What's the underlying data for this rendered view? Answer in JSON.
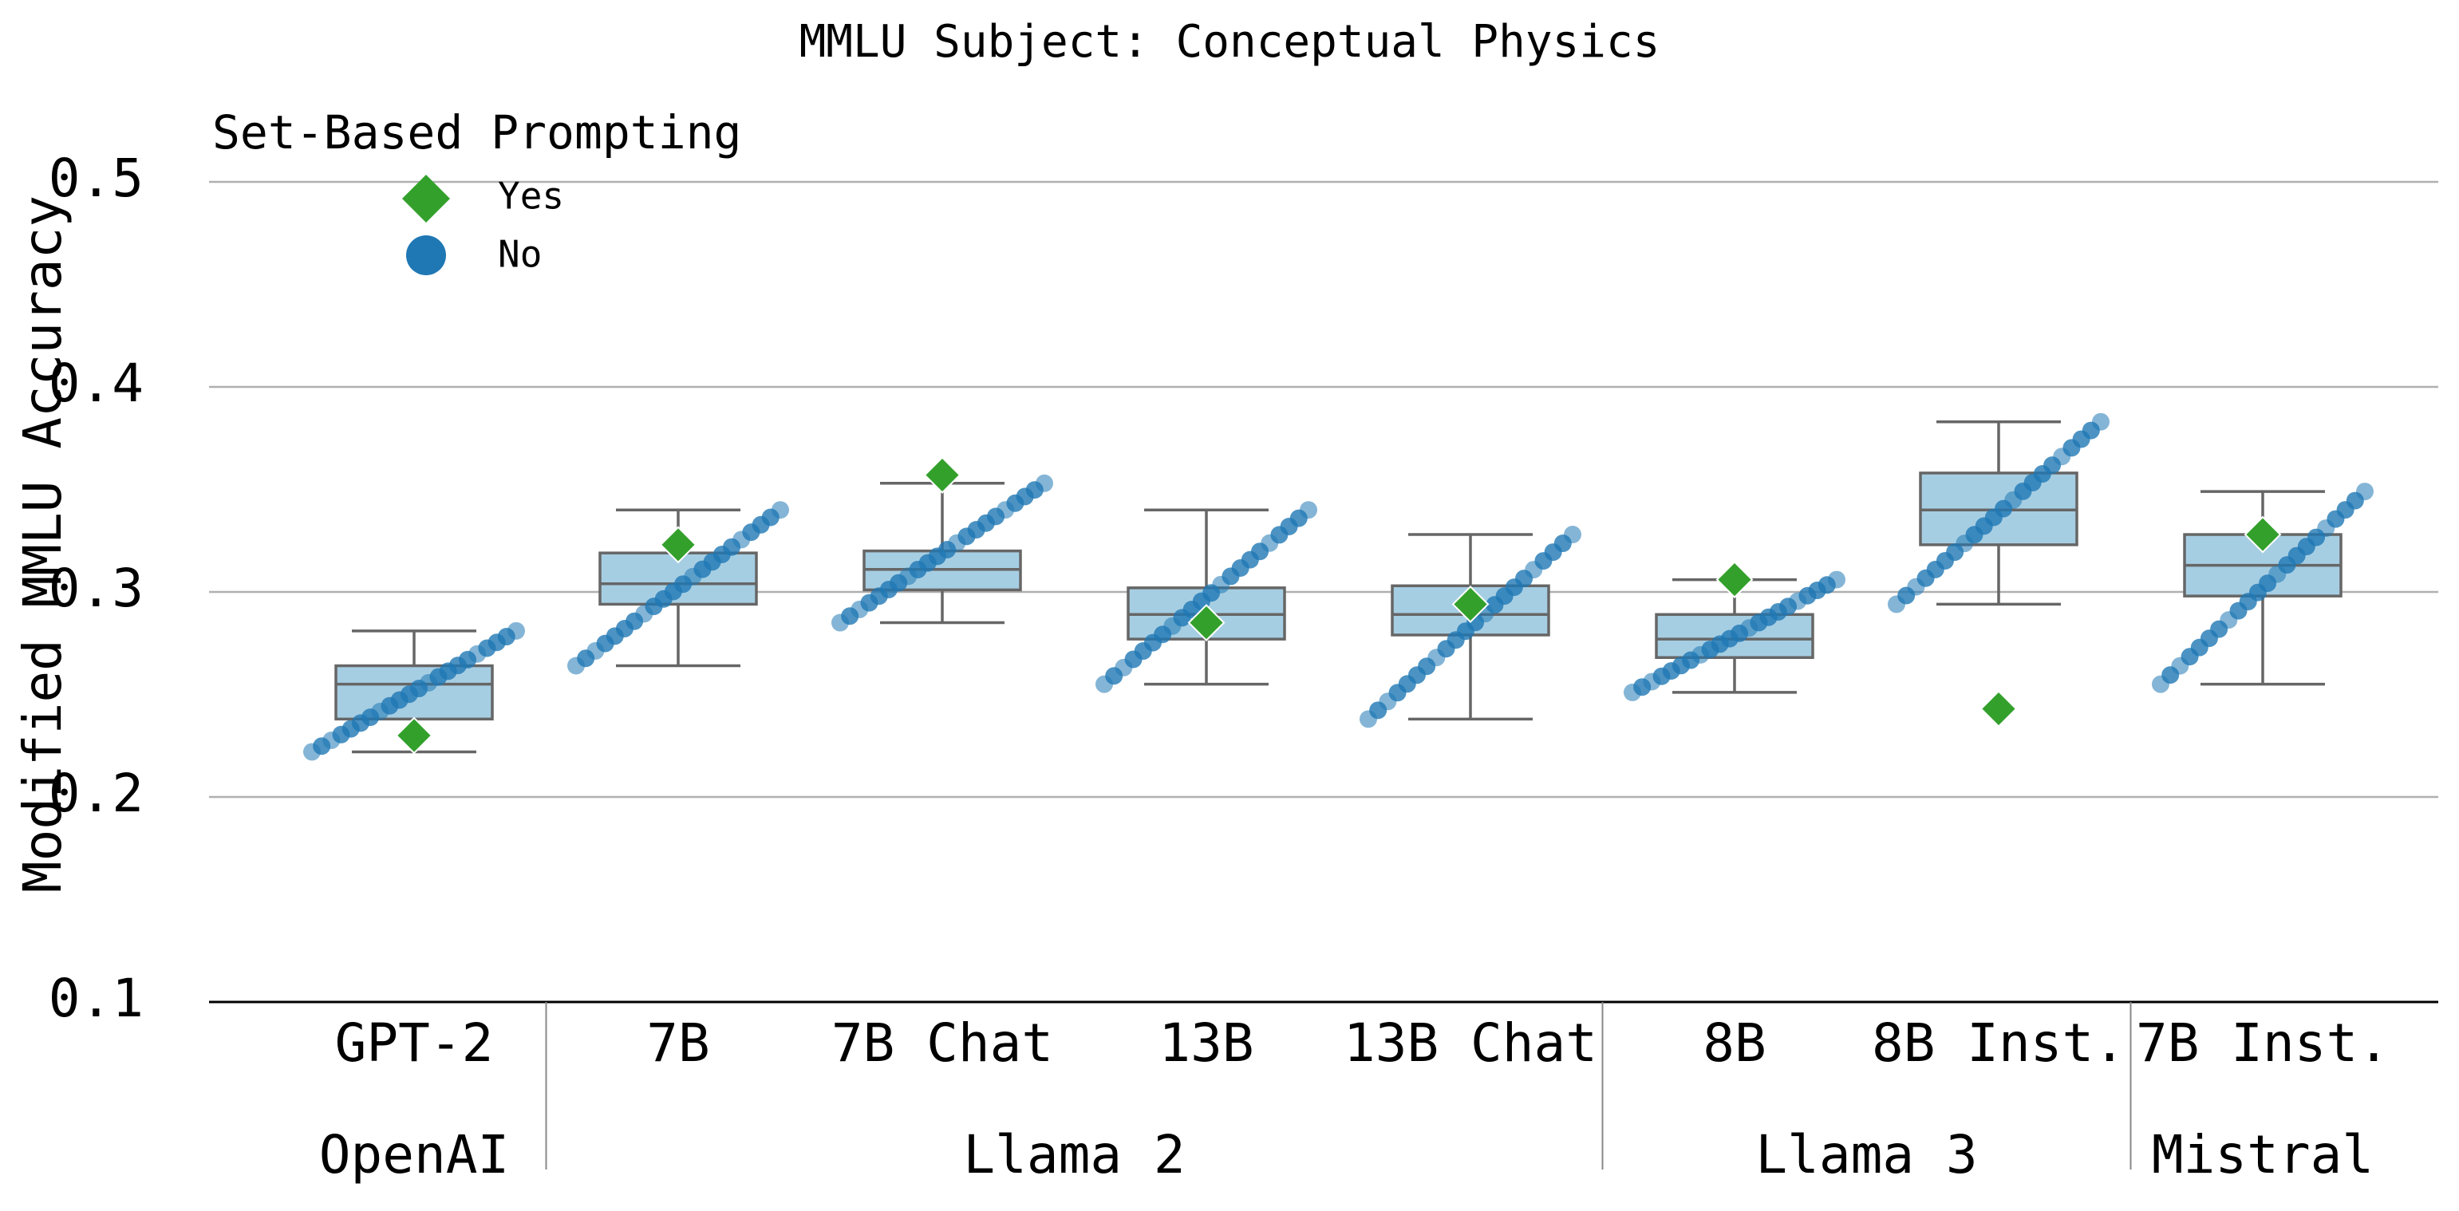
{
  "chart_data": {
    "type": "box",
    "title": "MMLU Subject: Conceptual Physics",
    "ylabel": "Modified MMLU Accuracy",
    "ylim": [
      0.1,
      0.5
    ],
    "yticks": [
      "0.1",
      "0.2",
      "0.3",
      "0.4",
      "0.5"
    ],
    "grid": "horizontal",
    "legend": {
      "title": "Set-Based Prompting",
      "placement": "top-left",
      "items": [
        {
          "label": "Yes",
          "marker": "diamond",
          "color": "#33a02c"
        },
        {
          "label": "No",
          "marker": "circle",
          "color": "#1f78b4"
        }
      ]
    },
    "colors": {
      "box_fill": "#a6cee3",
      "box_edge": "#666666",
      "grid": "#b0b0b0",
      "yes": "#33a02c",
      "no": "#1f78b4"
    },
    "groups": [
      {
        "name": "OpenAI",
        "members": [
          "GPT-2"
        ]
      },
      {
        "name": "Llama 2",
        "members": [
          "7B",
          "7B Chat",
          "13B",
          "13B Chat"
        ]
      },
      {
        "name": "Llama 3",
        "members": [
          "8B",
          "8B Inst."
        ]
      },
      {
        "name": "Mistral",
        "members": [
          "7B Inst."
        ]
      }
    ],
    "models": [
      {
        "label": "GPT-2",
        "whisker_low": 0.222,
        "q1": 0.238,
        "median": 0.255,
        "q3": 0.264,
        "whisker_high": 0.281,
        "yes": 0.23,
        "no_range": [
          0.222,
          0.281
        ]
      },
      {
        "label": "7B",
        "whisker_low": 0.264,
        "q1": 0.294,
        "median": 0.304,
        "q3": 0.319,
        "whisker_high": 0.34,
        "yes": 0.323,
        "no_range": [
          0.264,
          0.34
        ]
      },
      {
        "label": "7B Chat",
        "whisker_low": 0.285,
        "q1": 0.301,
        "median": 0.311,
        "q3": 0.32,
        "whisker_high": 0.353,
        "yes": 0.357,
        "no_range": [
          0.285,
          0.353
        ]
      },
      {
        "label": "13B",
        "whisker_low": 0.255,
        "q1": 0.277,
        "median": 0.289,
        "q3": 0.302,
        "whisker_high": 0.34,
        "yes": 0.285,
        "no_range": [
          0.255,
          0.34
        ]
      },
      {
        "label": "13B Chat",
        "whisker_low": 0.238,
        "q1": 0.279,
        "median": 0.289,
        "q3": 0.303,
        "whisker_high": 0.328,
        "yes": 0.294,
        "no_range": [
          0.238,
          0.328
        ]
      },
      {
        "label": "8B",
        "whisker_low": 0.251,
        "q1": 0.268,
        "median": 0.277,
        "q3": 0.289,
        "whisker_high": 0.306,
        "yes": 0.306,
        "no_range": [
          0.251,
          0.306
        ]
      },
      {
        "label": "8B Inst.",
        "whisker_low": 0.294,
        "q1": 0.323,
        "median": 0.34,
        "q3": 0.358,
        "whisker_high": 0.383,
        "yes": 0.243,
        "no_range": [
          0.294,
          0.383
        ]
      },
      {
        "label": "7B Inst.",
        "whisker_low": 0.255,
        "q1": 0.298,
        "median": 0.313,
        "q3": 0.328,
        "whisker_high": 0.349,
        "yes": 0.328,
        "no_range": [
          0.255,
          0.349
        ]
      }
    ]
  }
}
